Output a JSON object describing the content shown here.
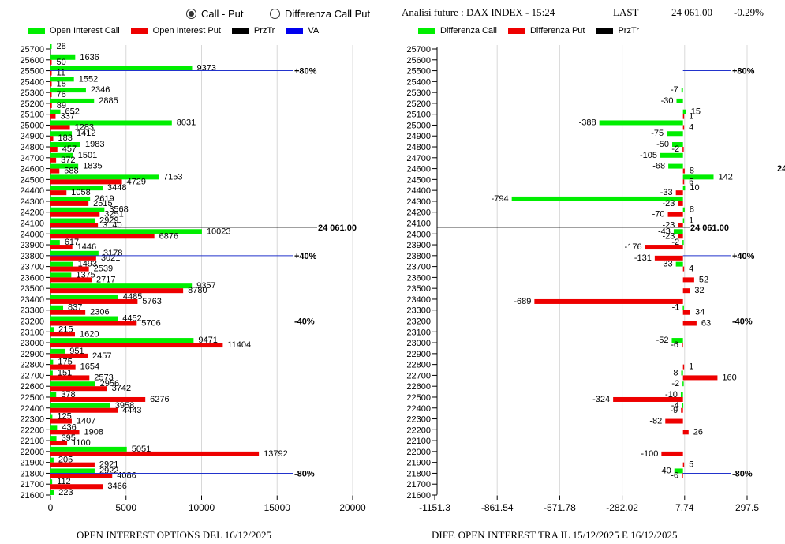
{
  "radio": {
    "options": [
      {
        "label": "Call - Put",
        "selected": true
      },
      {
        "label": "Differenza Call Put",
        "selected": false
      }
    ]
  },
  "header": {
    "title": "Analisi future : DAX INDEX - 15:24",
    "last_label": "LAST",
    "last_value": "24 061.00",
    "change": "-0.29%"
  },
  "colors": {
    "call": "#00ee00",
    "put": "#ee0000",
    "przTr": "#000000",
    "va": "#0000ee",
    "grid": "#d8d8d8"
  },
  "chart_data": [
    {
      "type": "bar",
      "orientation": "horizontal",
      "title": "OPEN INTEREST OPTIONS DEL 16/12/2025",
      "legend": [
        "Open Interest Call",
        "Open Interest Put",
        "PrzTr",
        "VA"
      ],
      "legend_position": "top",
      "categories": [
        25700,
        25600,
        25500,
        25400,
        25300,
        25200,
        25100,
        25000,
        24900,
        24800,
        24700,
        24600,
        24500,
        24400,
        24300,
        24200,
        24100,
        24000,
        23900,
        23800,
        23700,
        23600,
        23500,
        23400,
        23300,
        23200,
        23100,
        23000,
        22900,
        22800,
        22700,
        22600,
        22500,
        22400,
        22300,
        22200,
        22100,
        22000,
        21900,
        21800,
        21700,
        21600
      ],
      "series": [
        {
          "name": "Open Interest Call",
          "values": [
            28,
            1636,
            9373,
            1552,
            2346,
            2885,
            652,
            8031,
            1412,
            1983,
            1501,
            1835,
            7153,
            3448,
            2619,
            3568,
            2929,
            10023,
            617,
            3178,
            1493,
            1375,
            9357,
            4485,
            837,
            4452,
            215,
            9471,
            951,
            175,
            151,
            2956,
            378,
            3958,
            125,
            436,
            395,
            5051,
            205,
            2922,
            112,
            223
          ]
        },
        {
          "name": "Open Interest Put",
          "values": [
            null,
            50,
            11,
            18,
            76,
            89,
            337,
            1283,
            183,
            457,
            372,
            588,
            4729,
            1058,
            2515,
            3251,
            3140,
            6876,
            1446,
            3021,
            2539,
            2717,
            8780,
            5763,
            2306,
            5706,
            1620,
            11404,
            2457,
            1654,
            2573,
            3742,
            6276,
            4443,
            1407,
            1908,
            1100,
            13792,
            2921,
            4086,
            3466,
            null
          ]
        }
      ],
      "xticks": [
        "0",
        "5000",
        "10000",
        "15000",
        "20000"
      ],
      "xlim": [
        0,
        20000
      ],
      "ylim": [
        21600,
        25700
      ],
      "price_line": {
        "value": 24061,
        "label": "24 061.00"
      },
      "va_lines": [
        {
          "strike": 25500,
          "label": "+80%"
        },
        {
          "strike": 23800,
          "label": "+40%"
        },
        {
          "strike": 23200,
          "label": "-40%"
        },
        {
          "strike": 21800,
          "label": "-80%"
        }
      ],
      "grid": true
    },
    {
      "type": "bar",
      "orientation": "horizontal",
      "title": "DIFF. OPEN INTEREST TRA IL 15/12/2025 E 16/12/2025",
      "legend": [
        "Differenza Call",
        "Differenza Put",
        "PrzTr"
      ],
      "legend_position": "top",
      "categories": [
        25700,
        25600,
        25500,
        25400,
        25300,
        25200,
        25100,
        25000,
        24900,
        24800,
        24700,
        24600,
        24500,
        24400,
        24300,
        24200,
        24100,
        24000,
        23900,
        23800,
        23700,
        23600,
        23500,
        23400,
        23300,
        23200,
        23100,
        23000,
        22900,
        22800,
        22700,
        22600,
        22500,
        22400,
        22300,
        22200,
        22100,
        22000,
        21900,
        21800,
        21700,
        21600
      ],
      "series": [
        {
          "name": "Differenza Call",
          "values": [
            null,
            null,
            null,
            null,
            -7,
            -30,
            15,
            -388,
            -75,
            -50,
            -105,
            -68,
            142,
            10,
            -794,
            8,
            1,
            -43,
            -2,
            null,
            -33,
            null,
            null,
            null,
            -1,
            null,
            null,
            -52,
            null,
            null,
            -8,
            -2,
            -10,
            -4,
            null,
            null,
            null,
            null,
            null,
            -40,
            null,
            null
          ]
        },
        {
          "name": "Differenza Put",
          "values": [
            null,
            null,
            null,
            null,
            null,
            null,
            1,
            4,
            null,
            -2,
            null,
            8,
            5,
            -33,
            -23,
            -70,
            -23,
            -23,
            -176,
            -131,
            4,
            52,
            32,
            -689,
            34,
            63,
            null,
            -6,
            null,
            1,
            160,
            null,
            -324,
            -9,
            -82,
            26,
            null,
            -100,
            5,
            -6,
            null,
            null
          ]
        }
      ],
      "xticks": [
        "-1151.3",
        "-861.54",
        "-571.78",
        "-282.02",
        "7.74",
        "297.5"
      ],
      "xlim": [
        -1151.3,
        297.5
      ],
      "ylim": [
        21600,
        25700
      ],
      "price_line": {
        "value": 24061,
        "label": "24 061.00"
      },
      "va_lines": [
        {
          "strike": 25500,
          "label": "+80%"
        },
        {
          "strike": 23800,
          "label": "+40%"
        },
        {
          "strike": 23200,
          "label": "-40%"
        },
        {
          "strike": 21800,
          "label": "-80%"
        }
      ],
      "edge_label": "24",
      "grid": true
    }
  ]
}
